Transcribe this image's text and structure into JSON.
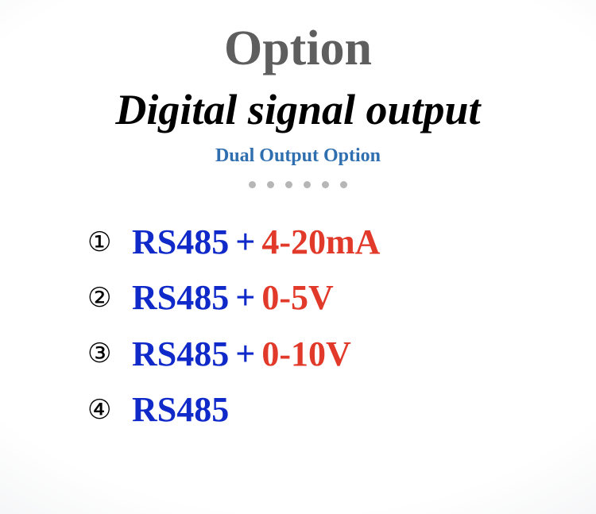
{
  "title": "Option",
  "subtitle": "Digital signal output",
  "tagline": "Dual Output Option",
  "dot_count": 6,
  "colors": {
    "title": "#5e5e5e",
    "subtitle": "#000000",
    "tagline": "#2f6fb0",
    "dot": "#b6b6b6",
    "primary": "#1029c9",
    "plus": "#1029c9",
    "secondary": "#e23a2a",
    "marker": "#000000",
    "bg_center": "#ffffff",
    "bg_edge": "#d8dadd"
  },
  "typography": {
    "title_fontsize": 62,
    "subtitle_fontsize": 54,
    "tagline_fontsize": 24,
    "row_fontsize": 44,
    "marker_fontsize": 34,
    "family_serif": "Times New Roman",
    "subtitle_italic": true
  },
  "options": [
    {
      "marker": "①",
      "primary": "RS485",
      "plus": "+",
      "secondary": "4-20mA"
    },
    {
      "marker": "②",
      "primary": "RS485",
      "plus": "+",
      "secondary": "0-5V"
    },
    {
      "marker": "③",
      "primary": "RS485",
      "plus": "+",
      "secondary": "0-10V"
    },
    {
      "marker": "④",
      "primary": "RS485",
      "plus": "",
      "secondary": ""
    }
  ]
}
